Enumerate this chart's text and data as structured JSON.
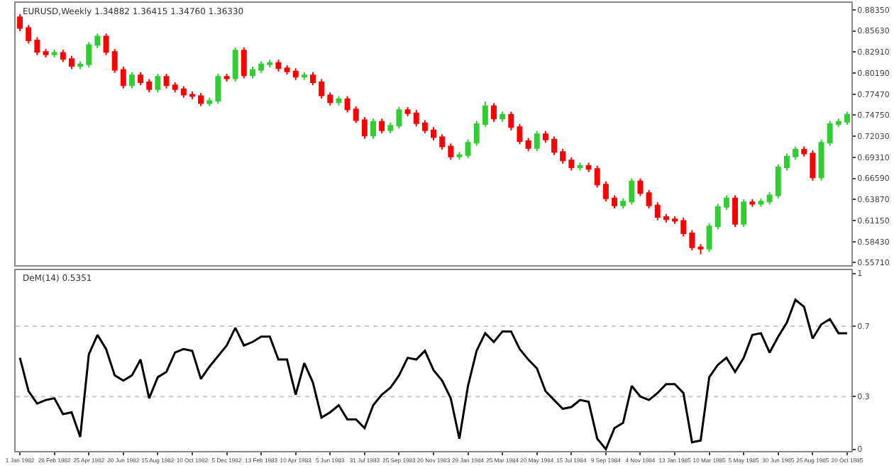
{
  "chart_data": [
    {
      "type": "candlestick",
      "title": "EURUSD,Weekly 1.34882 1.36415 1.34760 1.36330",
      "categories": [
        null,
        null,
        null,
        null,
        null,
        null,
        null,
        null,
        null,
        null,
        null,
        null,
        null,
        null,
        null,
        null,
        null,
        null,
        null,
        null,
        null,
        null,
        null,
        null,
        null,
        null,
        null,
        null,
        null,
        null,
        null,
        null,
        null,
        null,
        null,
        null,
        null,
        null,
        null,
        null,
        null,
        null,
        null,
        null,
        null,
        null,
        null,
        null,
        null,
        null,
        null,
        null,
        null,
        null,
        null,
        null,
        null,
        null,
        null,
        null,
        null,
        null,
        null,
        null,
        null,
        null,
        null,
        null,
        null,
        null,
        null,
        null,
        null,
        null,
        null,
        null,
        null,
        null,
        null,
        null,
        null,
        null,
        null,
        null,
        null,
        null,
        null,
        null,
        null,
        null,
        null,
        null,
        null,
        null,
        null,
        null,
        null
      ],
      "ohlc": [
        [
          0.874,
          0.878,
          0.856,
          0.86
        ],
        [
          0.86,
          0.864,
          0.84,
          0.844
        ],
        [
          0.844,
          0.848,
          0.825,
          0.829
        ],
        [
          0.829,
          0.833,
          0.822,
          0.826
        ],
        [
          0.826,
          0.832,
          0.822,
          0.828
        ],
        [
          0.828,
          0.832,
          0.816,
          0.82
        ],
        [
          0.82,
          0.824,
          0.807,
          0.811
        ],
        [
          0.811,
          0.817,
          0.807,
          0.813
        ],
        [
          0.813,
          0.842,
          0.809,
          0.838
        ],
        [
          0.838,
          0.853,
          0.834,
          0.849
        ],
        [
          0.849,
          0.853,
          0.825,
          0.829
        ],
        [
          0.829,
          0.833,
          0.802,
          0.806
        ],
        [
          0.806,
          0.81,
          0.782,
          0.786
        ],
        [
          0.786,
          0.803,
          0.782,
          0.799
        ],
        [
          0.799,
          0.803,
          0.786,
          0.79
        ],
        [
          0.79,
          0.794,
          0.777,
          0.781
        ],
        [
          0.781,
          0.801,
          0.777,
          0.797
        ],
        [
          0.797,
          0.801,
          0.782,
          0.786
        ],
        [
          0.786,
          0.79,
          0.777,
          0.781
        ],
        [
          0.781,
          0.785,
          0.77,
          0.774
        ],
        [
          0.774,
          0.778,
          0.768,
          0.772
        ],
        [
          0.772,
          0.776,
          0.759,
          0.763
        ],
        [
          0.763,
          0.77,
          0.759,
          0.766
        ],
        [
          0.766,
          0.801,
          0.762,
          0.797
        ],
        [
          0.797,
          0.801,
          0.791,
          0.795
        ],
        [
          0.795,
          0.835,
          0.791,
          0.831
        ],
        [
          0.831,
          0.835,
          0.795,
          0.799
        ],
        [
          0.799,
          0.81,
          0.795,
          0.806
        ],
        [
          0.806,
          0.817,
          0.802,
          0.813
        ],
        [
          0.813,
          0.819,
          0.809,
          0.815
        ],
        [
          0.815,
          0.819,
          0.804,
          0.808
        ],
        [
          0.808,
          0.812,
          0.8,
          0.804
        ],
        [
          0.804,
          0.808,
          0.793,
          0.797
        ],
        [
          0.797,
          0.803,
          0.793,
          0.799
        ],
        [
          0.799,
          0.803,
          0.786,
          0.79
        ],
        [
          0.79,
          0.794,
          0.769,
          0.773
        ],
        [
          0.773,
          0.777,
          0.76,
          0.764
        ],
        [
          0.764,
          0.772,
          0.76,
          0.768
        ],
        [
          0.768,
          0.772,
          0.751,
          0.755
        ],
        [
          0.755,
          0.759,
          0.737,
          0.741
        ],
        [
          0.741,
          0.745,
          0.717,
          0.721
        ],
        [
          0.721,
          0.743,
          0.717,
          0.739
        ],
        [
          0.739,
          0.743,
          0.724,
          0.728
        ],
        [
          0.728,
          0.738,
          0.724,
          0.734
        ],
        [
          0.734,
          0.758,
          0.73,
          0.754
        ],
        [
          0.754,
          0.758,
          0.746,
          0.75
        ],
        [
          0.75,
          0.754,
          0.733,
          0.737
        ],
        [
          0.737,
          0.741,
          0.724,
          0.728
        ],
        [
          0.728,
          0.732,
          0.715,
          0.719
        ],
        [
          0.719,
          0.723,
          0.703,
          0.707
        ],
        [
          0.707,
          0.711,
          0.69,
          0.694
        ],
        [
          0.694,
          0.7,
          0.69,
          0.696
        ],
        [
          0.696,
          0.716,
          0.692,
          0.712
        ],
        [
          0.712,
          0.74,
          0.708,
          0.736
        ],
        [
          0.736,
          0.765,
          0.732,
          0.759
        ],
        [
          0.759,
          0.763,
          0.739,
          0.743
        ],
        [
          0.743,
          0.752,
          0.739,
          0.748
        ],
        [
          0.748,
          0.752,
          0.728,
          0.732
        ],
        [
          0.732,
          0.736,
          0.71,
          0.714
        ],
        [
          0.714,
          0.718,
          0.701,
          0.705
        ],
        [
          0.705,
          0.727,
          0.701,
          0.723
        ],
        [
          0.723,
          0.727,
          0.712,
          0.716
        ],
        [
          0.716,
          0.72,
          0.696,
          0.7
        ],
        [
          0.7,
          0.704,
          0.685,
          0.689
        ],
        [
          0.689,
          0.693,
          0.676,
          0.68
        ],
        [
          0.68,
          0.686,
          0.676,
          0.682
        ],
        [
          0.682,
          0.686,
          0.674,
          0.678
        ],
        [
          0.678,
          0.682,
          0.654,
          0.658
        ],
        [
          0.658,
          0.662,
          0.636,
          0.64
        ],
        [
          0.64,
          0.644,
          0.627,
          0.631
        ],
        [
          0.631,
          0.64,
          0.627,
          0.636
        ],
        [
          0.636,
          0.666,
          0.632,
          0.662
        ],
        [
          0.662,
          0.666,
          0.643,
          0.647
        ],
        [
          0.647,
          0.651,
          0.627,
          0.631
        ],
        [
          0.631,
          0.635,
          0.612,
          0.616
        ],
        [
          0.616,
          0.62,
          0.609,
          0.613
        ],
        [
          0.613,
          0.617,
          0.607,
          0.611
        ],
        [
          0.611,
          0.615,
          0.591,
          0.595
        ],
        [
          0.595,
          0.599,
          0.573,
          0.577
        ],
        [
          0.577,
          0.581,
          0.568,
          0.575
        ],
        [
          0.575,
          0.608,
          0.571,
          0.604
        ],
        [
          0.604,
          0.633,
          0.6,
          0.629
        ],
        [
          0.629,
          0.644,
          0.625,
          0.64
        ],
        [
          0.64,
          0.644,
          0.603,
          0.607
        ],
        [
          0.607,
          0.639,
          0.603,
          0.635
        ],
        [
          0.635,
          0.639,
          0.629,
          0.633
        ],
        [
          0.633,
          0.64,
          0.629,
          0.636
        ],
        [
          0.636,
          0.648,
          0.632,
          0.644
        ],
        [
          0.644,
          0.684,
          0.64,
          0.68
        ],
        [
          0.68,
          0.698,
          0.676,
          0.694
        ],
        [
          0.694,
          0.707,
          0.69,
          0.703
        ],
        [
          0.703,
          0.707,
          0.694,
          0.698
        ],
        [
          0.698,
          0.702,
          0.663,
          0.667
        ],
        [
          0.667,
          0.716,
          0.663,
          0.712
        ],
        [
          0.712,
          0.74,
          0.708,
          0.736
        ],
        [
          0.736,
          0.743,
          0.732,
          0.739
        ],
        [
          0.739,
          0.752,
          0.735,
          0.748
        ]
      ],
      "colors": [
        "#ff0000",
        "#ff0000",
        "#ff0000",
        "#ff0000",
        "#32cd32",
        "#ff0000",
        "#ff0000",
        "#32cd32",
        "#32cd32",
        "#32cd32",
        "#ff0000",
        "#ff0000",
        "#ff0000",
        "#32cd32",
        "#ff0000",
        "#ff0000",
        "#32cd32",
        "#ff0000",
        "#ff0000",
        "#ff0000",
        "#ff0000",
        "#ff0000",
        "#32cd32",
        "#32cd32",
        "#ff0000",
        "#32cd32",
        "#ff0000",
        "#32cd32",
        "#32cd32",
        "#32cd32",
        "#ff0000",
        "#ff0000",
        "#ff0000",
        "#32cd32",
        "#ff0000",
        "#ff0000",
        "#ff0000",
        "#32cd32",
        "#ff0000",
        "#ff0000",
        "#ff0000",
        "#32cd32",
        "#ff0000",
        "#32cd32",
        "#32cd32",
        "#ff0000",
        "#ff0000",
        "#ff0000",
        "#ff0000",
        "#ff0000",
        "#ff0000",
        "#32cd32",
        "#32cd32",
        "#32cd32",
        "#32cd32",
        "#ff0000",
        "#32cd32",
        "#ff0000",
        "#ff0000",
        "#ff0000",
        "#32cd32",
        "#ff0000",
        "#ff0000",
        "#ff0000",
        "#ff0000",
        "#32cd32",
        "#ff0000",
        "#ff0000",
        "#ff0000",
        "#ff0000",
        "#32cd32",
        "#32cd32",
        "#ff0000",
        "#ff0000",
        "#ff0000",
        "#ff0000",
        "#ff0000",
        "#ff0000",
        "#ff0000",
        "#ff0000",
        "#32cd32",
        "#32cd32",
        "#32cd32",
        "#ff0000",
        "#32cd32",
        "#ff0000",
        "#32cd32",
        "#32cd32",
        "#32cd32",
        "#32cd32",
        "#32cd32",
        "#ff0000",
        "#ff0000",
        "#32cd32",
        "#32cd32",
        "#32cd32",
        "#32cd32"
      ],
      "ylim": [
        0.5535,
        0.8925
      ],
      "yticks": [
        {
          "value": 0.5571,
          "label": "0.55710"
        },
        {
          "value": 0.5843,
          "label": "0.58430"
        },
        {
          "value": 0.6115,
          "label": "0.61150"
        },
        {
          "value": 0.6387,
          "label": "0.63870"
        },
        {
          "value": 0.6659,
          "label": "0.66590"
        },
        {
          "value": 0.6931,
          "label": "0.69310"
        },
        {
          "value": 0.7203,
          "label": "0.72030"
        },
        {
          "value": 0.7475,
          "label": "0.74750"
        },
        {
          "value": 0.7747,
          "label": "0.77470"
        },
        {
          "value": 0.8019,
          "label": "0.80190"
        },
        {
          "value": 0.8291,
          "label": "0.82910"
        },
        {
          "value": 0.8563,
          "label": "0.85630"
        },
        {
          "value": 0.8835,
          "label": "0.88350"
        }
      ],
      "tick_labels": "y",
      "grid": false
    },
    {
      "type": "line",
      "title": "DeM(14) 0.5351",
      "categories": [
        "1 Jan 1982",
        null,
        null,
        null,
        "28 Feb 1982",
        null,
        null,
        null,
        "25 Apr 1982",
        null,
        null,
        null,
        "20 Jun 1982",
        null,
        null,
        null,
        "15 Aug 1982",
        null,
        null,
        null,
        "10 Oct 1982",
        null,
        null,
        null,
        "5 Dec 1982",
        null,
        null,
        null,
        "13 Feb 1983",
        null,
        null,
        null,
        "10 Apr 1983",
        null,
        null,
        null,
        "5 Jun 1983",
        null,
        null,
        null,
        "31 Jul 1983",
        null,
        null,
        null,
        "25 Sep 1983",
        null,
        null,
        null,
        "20 Nov 1983",
        null,
        null,
        null,
        "29 Jan 1984",
        null,
        null,
        null,
        "25 Mar 1984",
        null,
        null,
        null,
        "20 May 1984",
        null,
        null,
        null,
        "15 Jul 1984",
        null,
        null,
        null,
        "9 Sep 1984",
        null,
        null,
        null,
        "4 Nov 1984",
        null,
        null,
        null,
        "13 Jan 1985",
        null,
        null,
        null,
        "10 Mar 1985",
        null,
        null,
        null,
        "5 May 1985",
        null,
        null,
        null,
        "30 Jun 1985",
        null,
        null,
        null,
        "25 Aug 1985",
        null,
        null,
        null,
        "20 Oct 1985"
      ],
      "series": [
        {
          "color": "#000000",
          "values": [
            0.52,
            0.33,
            0.26,
            0.28,
            0.29,
            0.2,
            0.21,
            0.07,
            0.54,
            0.65,
            0.57,
            0.42,
            0.39,
            0.42,
            0.51,
            0.29,
            0.41,
            0.44,
            0.55,
            0.57,
            0.56,
            0.4,
            0.47,
            0.53,
            0.59,
            0.69,
            0.59,
            0.61,
            0.64,
            0.64,
            0.51,
            0.51,
            0.31,
            0.49,
            0.38,
            0.18,
            0.21,
            0.25,
            0.17,
            0.17,
            0.12,
            0.25,
            0.31,
            0.35,
            0.42,
            0.52,
            0.51,
            0.56,
            0.45,
            0.39,
            0.29,
            0.06,
            0.36,
            0.56,
            0.66,
            0.61,
            0.67,
            0.67,
            0.57,
            0.51,
            0.46,
            0.33,
            0.28,
            0.23,
            0.24,
            0.28,
            0.27,
            0.06,
            0.0,
            0.12,
            0.15,
            0.36,
            0.3,
            0.28,
            0.32,
            0.37,
            0.37,
            0.32,
            0.04,
            0.05,
            0.41,
            0.48,
            0.52,
            0.44,
            0.52,
            0.65,
            0.66,
            0.55,
            0.64,
            0.72,
            0.85,
            0.81,
            0.63,
            0.71,
            0.74,
            0.66,
            0.66
          ]
        }
      ],
      "ylim": [
        -0.01,
        1.02
      ],
      "yticks": [
        0,
        0.3,
        0.7,
        1
      ],
      "ref_lines": [
        {
          "axis": "y",
          "value": 0.3,
          "color": "#c8c8c8",
          "line_style": "dotted"
        },
        {
          "axis": "y",
          "value": 0.7,
          "color": "#c8c8c8",
          "line_style": "dotted"
        }
      ],
      "grid": false,
      "marker": "none",
      "line_style": "solid"
    }
  ]
}
